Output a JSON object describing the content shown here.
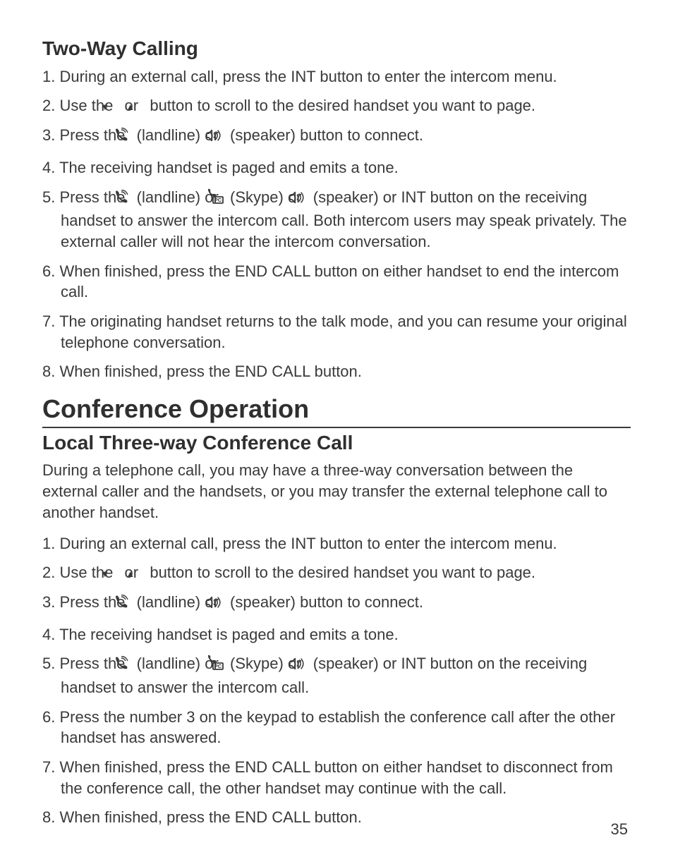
{
  "colors": {
    "text": "#3a3a3a",
    "heading": "#2f2f2f",
    "rule": "#3a3a3a",
    "bg": "#ffffff",
    "icon_fill": "#3a3a3a"
  },
  "typography": {
    "body_fontsize": 22,
    "h2_fontsize": 28,
    "h1_fontsize": 36,
    "h1_weight": 600,
    "h2_weight": 600,
    "line_height": 1.35,
    "font_family": "Trebuchet MS / humanist sans"
  },
  "icons": {
    "down_triangle": "▼",
    "up_triangle": "▲",
    "phone": "landline handset icon",
    "speaker": "speakerphone icon",
    "pc": "PC/Skype icon (phone + PC box)"
  },
  "section1": {
    "title": "Two-Way Calling",
    "items": [
      {
        "pre": "During an external call, press the INT button to enter the intercom menu."
      },
      {
        "pre": "Use the ",
        "seq": [
          "down",
          " or ",
          "up"
        ],
        "post": " button to scroll to the desired handset you want to page."
      },
      {
        "pre": "Press the ",
        "seq": [
          "phone",
          " (landline) or ",
          "speaker"
        ],
        "post": " (speaker) button to connect."
      },
      {
        "pre": "The receiving handset is paged and emits a tone."
      },
      {
        "pre": "Press the ",
        "seq": [
          "phone",
          " (landline) or ",
          "pc",
          " (Skype) or ",
          "speaker"
        ],
        "post": " (speaker) or INT button on the receiving handset to answer the intercom call. Both intercom users may speak privately. The external caller will not hear the intercom conversation."
      },
      {
        "pre": "When finished, press the END CALL button on either handset to end the intercom call."
      },
      {
        "pre": "The originating handset returns to the talk mode, and you can resume your original telephone conversation."
      },
      {
        "pre": "When finished, press the END CALL button."
      }
    ]
  },
  "section2": {
    "title": "Conference Operation",
    "subtitle": "Local Three-way Conference Call",
    "intro": "During a telephone call, you may have a three-way conversation between the external caller and the handsets, or you may transfer the external telephone call to another handset.",
    "items": [
      {
        "pre": "During an external call, press the INT button to enter the intercom menu."
      },
      {
        "pre": "Use the ",
        "seq": [
          "down",
          " or ",
          "up"
        ],
        "post": " button to scroll to the desired handset you want to page."
      },
      {
        "pre": "Press the ",
        "seq": [
          "phone",
          " (landline) or ",
          "speaker"
        ],
        "post": " (speaker) button to connect."
      },
      {
        "pre": "The receiving handset is paged and emits a tone."
      },
      {
        "pre": "Press the ",
        "seq": [
          "phone",
          " (landline) or ",
          "pc",
          " (Skype) or ",
          "speaker"
        ],
        "post": " (speaker) or INT button on the receiving handset to answer the intercom call."
      },
      {
        "pre": "Press the number 3 on the keypad to establish the conference call after the other handset has answered."
      },
      {
        "pre": "When finished, press the END CALL button on either handset to disconnect from the conference call, the other handset may continue with the call."
      },
      {
        "pre": "When finished, press the END CALL button."
      }
    ]
  },
  "page_number": "35"
}
